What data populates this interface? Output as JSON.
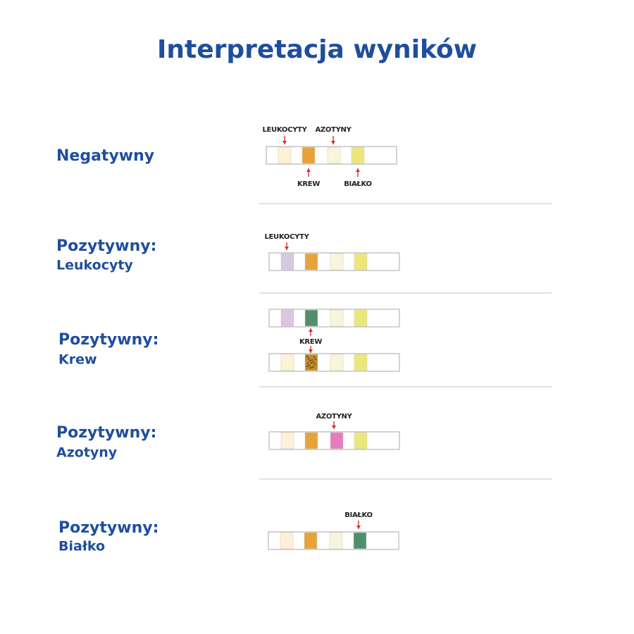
{
  "title": "Interpretacja wyników",
  "rows": [
    {
      "status": "Negatywny",
      "strip_labels": [
        "LEUKOCYTY",
        "AZOTYNY",
        "KREW",
        "BIAŁKO"
      ]
    },
    {
      "status": "Pozytywny:",
      "detail": "Leukocyty",
      "strip_labels": [
        "LEUKOCYTY"
      ]
    },
    {
      "status": "Pozytywny:",
      "detail": "Krew",
      "strip_labels": [
        "KREW"
      ]
    },
    {
      "status": "Pozytywny:",
      "detail": "Azotyny",
      "strip_labels": [
        "AZOTYNY"
      ]
    },
    {
      "status": "Pozytywny:",
      "detail": "Białko",
      "strip_labels": [
        "BIAŁKO"
      ]
    }
  ]
}
